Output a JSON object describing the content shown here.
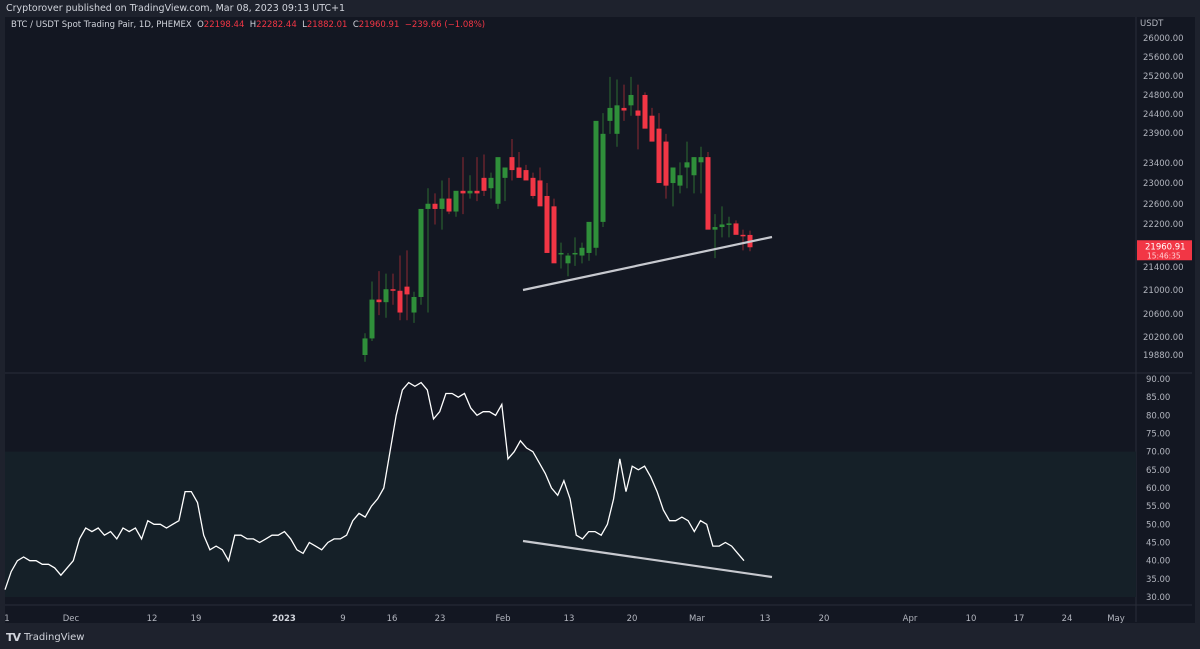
{
  "header": {
    "published": "Cryptorover published on TradingView.com, Mar 08, 2023 09:13 UTC+1"
  },
  "legend": {
    "symbol": "BTC / USDT Spot Trading Pair, 1D, PHEMEX",
    "open_label": "O",
    "open": "22198.44",
    "high_label": "H",
    "high": "22282.44",
    "low_label": "L",
    "low": "21882.01",
    "close_label": "C",
    "close": "21960.91",
    "change": "−239.66 (−1.08%)"
  },
  "price_axis": {
    "currency": "USDT",
    "ticks": [
      "26000.00",
      "25600.00",
      "25200.00",
      "24800.00",
      "24400.00",
      "23900.00",
      "23400.00",
      "23000.00",
      "22600.00",
      "22200.00",
      "21400.00",
      "21000.00",
      "20600.00",
      "20200.00",
      "19880.00"
    ],
    "last_price": "21960.91",
    "countdown": "15:46:35",
    "last_price_color": "#f23645"
  },
  "rsi_axis": {
    "ticks": [
      "90.00",
      "85.00",
      "80.00",
      "75.00",
      "70.00",
      "65.00",
      "60.00",
      "55.00",
      "50.00",
      "45.00",
      "40.00",
      "35.00",
      "30.00"
    ]
  },
  "time_axis": {
    "ticks": [
      "1",
      "Dec",
      "12",
      "19",
      "2023",
      "9",
      "16",
      "23",
      "Feb",
      "13",
      "20",
      "Mar",
      "13",
      "20",
      "Apr",
      "10",
      "17",
      "24",
      "May"
    ]
  },
  "footer": {
    "brand": "TradingView",
    "logo": "TV"
  },
  "colors": {
    "up": "#26a69a",
    "up_candle": "#2f8f3a",
    "down": "#f23645",
    "background": "#131722",
    "rsi_band": "#152028",
    "trendline": "#c7c9cf"
  },
  "chart_data": [
    {
      "type": "candlestick",
      "title": "BTC / USDT Spot Trading Pair, 1D, PHEMEX",
      "ylabel": "USDT",
      "ylim": [
        19700,
        26200
      ],
      "x": [
        "Jan 12",
        "Jan 13",
        "Jan 14",
        "Jan 15",
        "Jan 16",
        "Jan 17",
        "Jan 18",
        "Jan 19",
        "Jan 20",
        "Jan 21",
        "Jan 22",
        "Jan 23",
        "Jan 24",
        "Jan 25",
        "Jan 26",
        "Jan 27",
        "Jan 28",
        "Jan 29",
        "Jan 30",
        "Jan 31",
        "Feb 1",
        "Feb 2",
        "Feb 3",
        "Feb 4",
        "Feb 5",
        "Feb 6",
        "Feb 7",
        "Feb 8",
        "Feb 9",
        "Feb 10",
        "Feb 11",
        "Feb 12",
        "Feb 13",
        "Feb 14",
        "Feb 15",
        "Feb 16",
        "Feb 17",
        "Feb 18",
        "Feb 19",
        "Feb 20",
        "Feb 21",
        "Feb 22",
        "Feb 23",
        "Feb 24",
        "Feb 25",
        "Feb 26",
        "Feb 27",
        "Feb 28",
        "Mar 1",
        "Mar 2",
        "Mar 3",
        "Mar 4",
        "Mar 5",
        "Mar 6",
        "Mar 7",
        "Mar 8"
      ],
      "open": [
        19880,
        20200,
        20950,
        20900,
        21150,
        21120,
        21200,
        20700,
        21000,
        22700,
        22800,
        22700,
        22900,
        22650,
        23050,
        23000,
        23050,
        23300,
        23100,
        22800,
        23300,
        23700,
        23500,
        23450,
        23300,
        23250,
        22950,
        22750,
        21850,
        21650,
        21850,
        21800,
        21850,
        21950,
        22450,
        24400,
        24150,
        24650,
        24700,
        24600,
        24900,
        24500,
        24250,
        24000,
        23200,
        23150,
        23500,
        23350,
        23600,
        23700,
        22300,
        22350,
        22400,
        22420,
        22200,
        22198
      ],
      "high": [
        20300,
        21300,
        21500,
        21450,
        21450,
        21800,
        21900,
        21100,
        21150,
        23100,
        23000,
        23250,
        23300,
        23000,
        23700,
        23350,
        23700,
        23750,
        23400,
        22950,
        23400,
        24050,
        23800,
        23550,
        23400,
        23500,
        23200,
        22900,
        22050,
        21850,
        22150,
        22050,
        22150,
        22750,
        24550,
        25250,
        25200,
        25100,
        25250,
        25100,
        24950,
        24650,
        24550,
        24150,
        23350,
        23600,
        24000,
        23700,
        23900,
        23800,
        22600,
        22750,
        22550,
        22480,
        22300,
        22282
      ],
      "low": [
        19750,
        20150,
        20650,
        20600,
        20850,
        20550,
        20550,
        20500,
        20850,
        20700,
        22400,
        22300,
        22600,
        22550,
        22600,
        22900,
        22850,
        22950,
        22900,
        22700,
        22850,
        23250,
        23300,
        23300,
        22900,
        22950,
        22700,
        21750,
        21550,
        21400,
        21600,
        21650,
        21700,
        21800,
        22350,
        24150,
        23900,
        24400,
        24500,
        23850,
        24400,
        24050,
        23800,
        22900,
        22750,
        23000,
        23100,
        23000,
        23000,
        23300,
        21750,
        22150,
        22150,
        22300,
        21900,
        21882
      ],
      "close": [
        20200,
        20950,
        20900,
        21150,
        21120,
        20700,
        21050,
        21000,
        22700,
        22800,
        22700,
        22900,
        22650,
        23050,
        23000,
        23050,
        23000,
        23050,
        23300,
        23700,
        23500,
        23450,
        23300,
        23250,
        22950,
        22750,
        21850,
        21650,
        21850,
        21800,
        21850,
        21950,
        22450,
        24400,
        24150,
        24650,
        24700,
        24600,
        24900,
        24500,
        24250,
        24000,
        23200,
        23150,
        23500,
        23350,
        23600,
        23700,
        23700,
        22300,
        22350,
        22400,
        22420,
        22200,
        22198,
        21960
      ]
    },
    {
      "type": "line",
      "title": "RSI",
      "ylim": [
        30,
        90
      ],
      "band": [
        30,
        70
      ],
      "x_range": "Nov 2022 – Mar 8 2023",
      "values": [
        32,
        37,
        40,
        41,
        40,
        40,
        39,
        39,
        38,
        36,
        38,
        40,
        46,
        49,
        48,
        49,
        47,
        48,
        46,
        49,
        48,
        49,
        46,
        51,
        50,
        50,
        49,
        50,
        51,
        59,
        59,
        56,
        47,
        43,
        44,
        43,
        40,
        47,
        47,
        46,
        46,
        45,
        46,
        47,
        47,
        48,
        46,
        43,
        42,
        45,
        44,
        43,
        45,
        46,
        46,
        47,
        51,
        53,
        52,
        55,
        57,
        60,
        70,
        80,
        87,
        89,
        88,
        89,
        87,
        79,
        81,
        86,
        86,
        85,
        86,
        82,
        80,
        81,
        81,
        80,
        83,
        68,
        70,
        73,
        71,
        70,
        67,
        64,
        60,
        58,
        62,
        57,
        47,
        46,
        48,
        48,
        47,
        50,
        57,
        68,
        59,
        66,
        65,
        66,
        63,
        59,
        54,
        51,
        51,
        52,
        51,
        48,
        51,
        50,
        44,
        44,
        45,
        44,
        42,
        40
      ],
      "annotations": [
        "trendline: rising support under price from ~Feb 5 to ~Mar 17",
        "trendline: falling line under RSI from ~Feb 5 to ~Mar 17 (bullish divergence)"
      ]
    }
  ]
}
